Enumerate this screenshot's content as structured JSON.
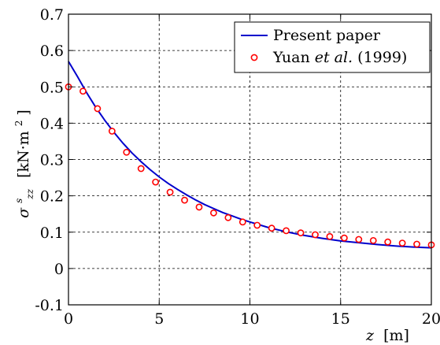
{
  "chart_data": {
    "type": "line",
    "xlabel_var": "z",
    "xlabel_unit": "[m]",
    "ylabel_var": "σ",
    "ylabel_sup": "s",
    "ylabel_sub": "zz",
    "ylabel_unit": "[kN·m",
    "ylabel_unit_sup": "2",
    "ylabel_unit_close": "]",
    "xlim": [
      0,
      20
    ],
    "ylim": [
      -0.1,
      0.7
    ],
    "xticks": [
      0,
      5,
      10,
      15,
      20
    ],
    "yticks": [
      -0.1,
      0,
      0.1,
      0.2,
      0.3,
      0.4,
      0.5,
      0.6,
      0.7
    ],
    "xtick_labels": [
      "0",
      "5",
      "10",
      "15",
      "20"
    ],
    "ytick_labels": [
      "-0.1",
      "0",
      "0.1",
      "0.2",
      "0.3",
      "0.4",
      "0.5",
      "0.6",
      "0.7"
    ],
    "grid": true,
    "legend_position": "top-right",
    "series": [
      {
        "name": "Present paper",
        "kind": "line",
        "color": "#0000cc",
        "x": [
          0,
          0.5,
          1,
          1.5,
          2,
          2.5,
          3,
          3.5,
          4,
          4.5,
          5,
          5.5,
          6,
          6.5,
          7,
          7.5,
          8,
          8.5,
          9,
          9.5,
          10,
          11,
          12,
          13,
          14,
          15,
          16,
          17,
          18,
          19,
          20
        ],
        "y": [
          0.57,
          0.528,
          0.484,
          0.444,
          0.408,
          0.375,
          0.345,
          0.318,
          0.294,
          0.272,
          0.252,
          0.234,
          0.218,
          0.203,
          0.189,
          0.176,
          0.165,
          0.154,
          0.145,
          0.136,
          0.128,
          0.113,
          0.101,
          0.091,
          0.083,
          0.076,
          0.071,
          0.066,
          0.062,
          0.059,
          0.057
        ]
      },
      {
        "name_prefix": "Yuan ",
        "name_italic": "et al.",
        "name_suffix": " (1999)",
        "kind": "scatter",
        "color": "#ff0000",
        "x": [
          0,
          0.8,
          1.6,
          2.4,
          3.2,
          4.0,
          4.8,
          5.6,
          6.4,
          7.2,
          8.0,
          8.8,
          9.6,
          10.4,
          11.2,
          12.0,
          12.8,
          13.6,
          14.4,
          15.2,
          16.0,
          16.8,
          17.6,
          18.4,
          19.2,
          20.0
        ],
        "y": [
          0.5,
          0.488,
          0.44,
          0.378,
          0.32,
          0.275,
          0.238,
          0.21,
          0.188,
          0.169,
          0.153,
          0.14,
          0.128,
          0.119,
          0.111,
          0.104,
          0.098,
          0.093,
          0.088,
          0.084,
          0.08,
          0.077,
          0.073,
          0.07,
          0.067,
          0.065
        ]
      }
    ]
  }
}
